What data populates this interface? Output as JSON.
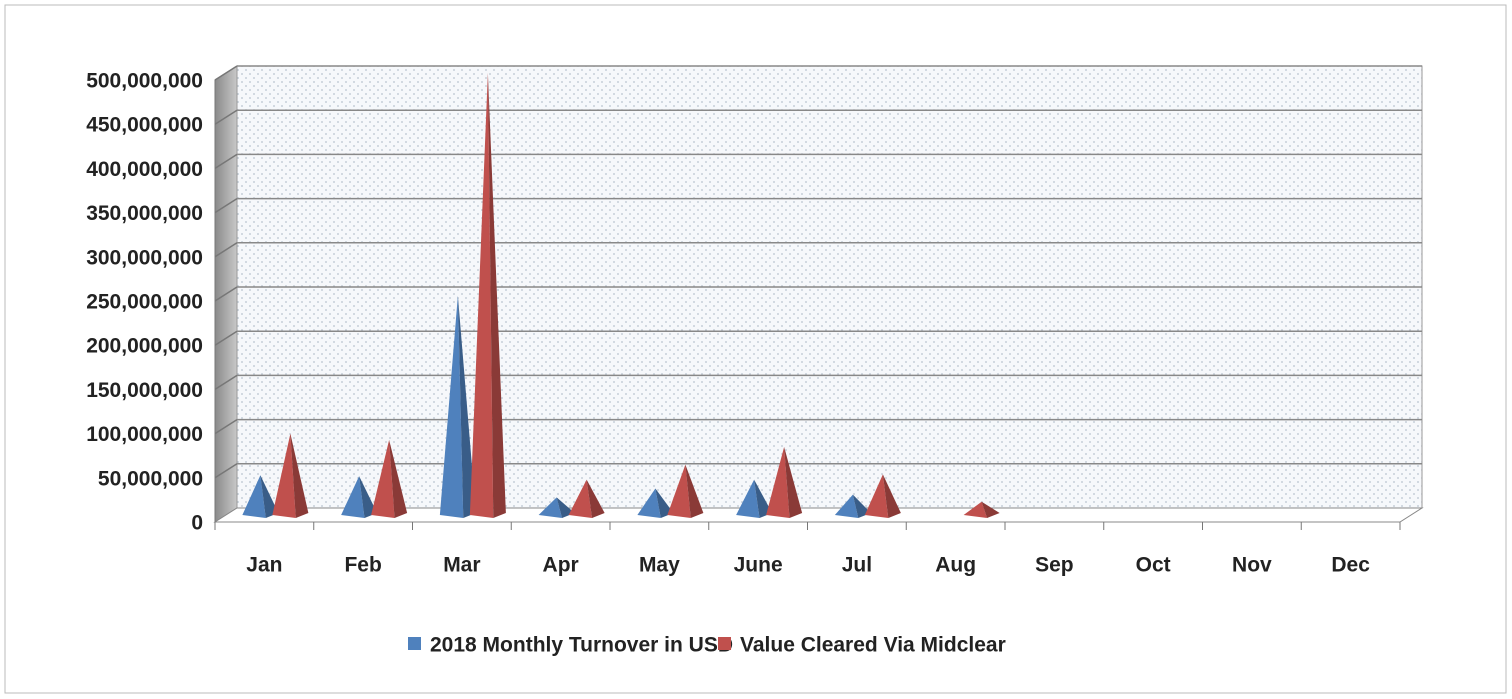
{
  "chart_data": {
    "type": "bar3d-pyramid",
    "categories": [
      "Jan",
      "Feb",
      "Mar",
      "Apr",
      "May",
      "June",
      "Jul",
      "Aug",
      "Sep",
      "Oct",
      "Nov",
      "Dec"
    ],
    "series": [
      {
        "name": "2018 Monthly Turnover in USD",
        "color": "#4f81bd",
        "values": [
          45000000,
          44000000,
          248000000,
          20000000,
          30000000,
          40000000,
          23000000,
          null,
          null,
          null,
          null,
          null
        ]
      },
      {
        "name": "Value Cleared Via Midclear",
        "color": "#c0504d",
        "values": [
          92000000,
          85000000,
          500000000,
          40000000,
          57000000,
          77000000,
          46000000,
          15000000,
          null,
          null,
          null,
          null
        ]
      }
    ],
    "ylim": [
      0,
      500000000
    ],
    "yticks": [
      0,
      {
        "value": 50000000,
        "label": "50,000,000"
      },
      {
        "value": 100000000,
        "label": "100,000,000"
      },
      {
        "value": 150000000,
        "label": "150,000,000"
      },
      {
        "value": 200000000,
        "label": "200,000,000"
      },
      {
        "value": 250000000,
        "label": "250,000,000"
      },
      {
        "value": 300000000,
        "label": "300,000,000"
      },
      {
        "value": 350000000,
        "label": "350,000,000"
      },
      {
        "value": 400000000,
        "label": "400,000,000"
      },
      {
        "value": 450000000,
        "label": "450,000,000"
      },
      {
        "value": 500000000,
        "label": "500,000,000"
      }
    ],
    "grid": true,
    "legend": "bottom"
  }
}
